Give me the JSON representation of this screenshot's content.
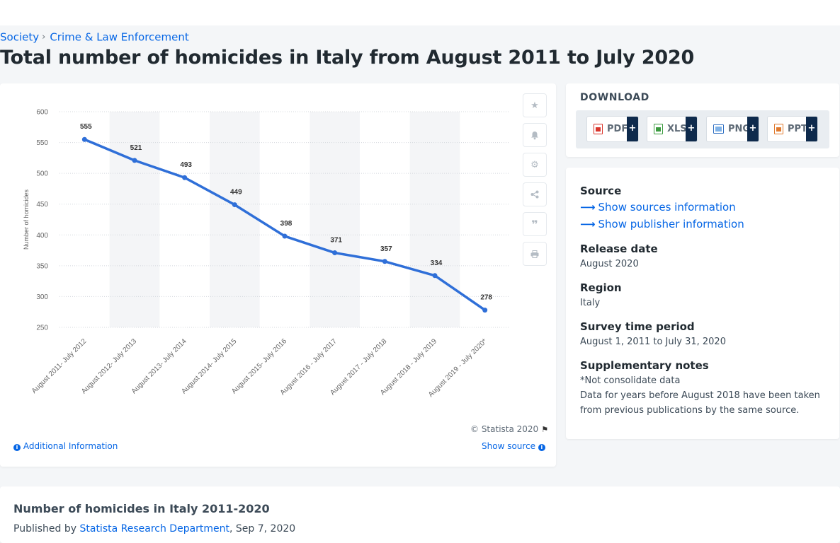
{
  "breadcrumb": {
    "items": [
      "Society",
      "Crime & Law Enforcement"
    ],
    "separator": "›"
  },
  "page_title": "Total number of homicides in Italy from August 2011 to July 2020",
  "chart_toolbar": {
    "icons": [
      "star-icon",
      "bell-icon",
      "gear-icon",
      "share-icon",
      "quote-icon",
      "print-icon"
    ]
  },
  "chart_footer": {
    "copyright": "© Statista 2020",
    "additional_info": "Additional Information",
    "show_source": "Show source"
  },
  "download": {
    "title": "DOWNLOAD",
    "buttons": [
      {
        "label": "PDF",
        "color": "#d9342b"
      },
      {
        "label": "XLS",
        "color": "#3a9a3e"
      },
      {
        "label": "PNG",
        "color": "#2f6fc2"
      },
      {
        "label": "PPT",
        "color": "#e07a2e"
      }
    ],
    "plus": "+"
  },
  "meta": {
    "source_heading": "Source",
    "show_sources": "Show sources information",
    "show_publisher": "Show publisher information",
    "release_heading": "Release date",
    "release_value": "August 2020",
    "region_heading": "Region",
    "region_value": "Italy",
    "survey_heading": "Survey time period",
    "survey_value": "August 1, 2011 to July 31, 2020",
    "notes_heading": "Supplementary notes",
    "notes_line1": "*Not consolidate data",
    "notes_line2": "Data for years before August 2018 have been taken",
    "notes_line3": "from previous publications by the same source."
  },
  "bottom": {
    "title": "Number of homicides in Italy 2011-2020",
    "published_prefix": "Published by",
    "publisher": "Statista Research Department",
    "date": ", Sep 7, 2020"
  },
  "colors": {
    "accent": "#0666e5",
    "line": "#2f6fd8",
    "band": "#f4f5f7"
  },
  "chart_data": {
    "type": "line",
    "ylabel": "Number of homicides",
    "xlabel": "",
    "ylim": [
      250,
      600
    ],
    "yticks": [
      250,
      300,
      350,
      400,
      450,
      500,
      550,
      600
    ],
    "grid": true,
    "categories": [
      "August 2011- July 2012",
      "August 2012- July 2013",
      "August 2013- July 2014",
      "August 2014- July 2015",
      "August 2015- July 2016",
      "August 2016 - July 2017",
      "August 2017 - July 2018",
      "August 2018 - July 2019",
      "August 2019 - July 2020*"
    ],
    "series": [
      {
        "values": [
          555,
          521,
          493,
          449,
          398,
          371,
          357,
          334,
          278
        ]
      }
    ]
  }
}
